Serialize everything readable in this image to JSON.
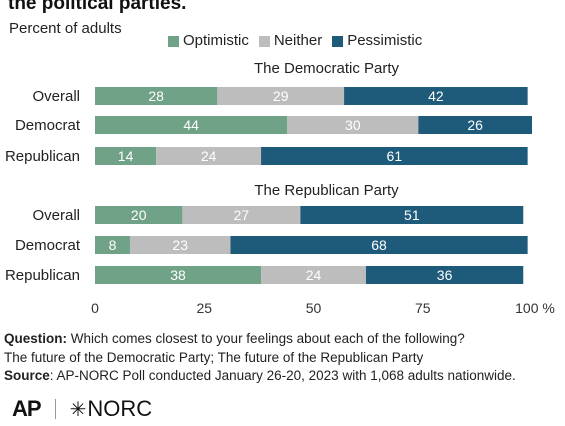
{
  "header": {
    "title": "the political parties.",
    "subtitle": "Percent of adults"
  },
  "legend": [
    {
      "label": "Optimistic",
      "color": "#6fa287"
    },
    {
      "label": "Neither",
      "color": "#bdbdbd"
    },
    {
      "label": "Pessimistic",
      "color": "#1e5a7a"
    }
  ],
  "chart_data": {
    "type": "bar",
    "orientation": "horizontal",
    "stacked": true,
    "xlim": [
      0,
      100
    ],
    "x_ticks": [
      "0",
      "25",
      "50",
      "75",
      "100 %"
    ],
    "series_names": [
      "Optimistic",
      "Neither",
      "Pessimistic"
    ],
    "groups": [
      {
        "title": "The Democratic Party",
        "rows": [
          {
            "label": "Overall",
            "values": [
              28,
              29,
              42
            ]
          },
          {
            "label": "Democrat",
            "values": [
              44,
              30,
              26
            ]
          },
          {
            "label": "Republican",
            "values": [
              14,
              24,
              61
            ]
          }
        ]
      },
      {
        "title": "The Republican Party",
        "rows": [
          {
            "label": "Overall",
            "values": [
              20,
              27,
              51
            ]
          },
          {
            "label": "Democrat",
            "values": [
              8,
              23,
              68
            ]
          },
          {
            "label": "Republican",
            "values": [
              38,
              24,
              36
            ]
          }
        ]
      }
    ]
  },
  "footnotes": {
    "question_label": "Question:",
    "question_text": " Which comes closest to your feelings about each of the following?",
    "question_line2": "The future of the Democratic Party; The future of the Republican Party",
    "source_label": "Source",
    "source_text": ": AP-NORC Poll conducted January 26-20, 2023 with 1,068 adults nationwide."
  },
  "logos": {
    "ap": "AP",
    "norc": "NORC",
    "norc_symbol": "✳"
  }
}
